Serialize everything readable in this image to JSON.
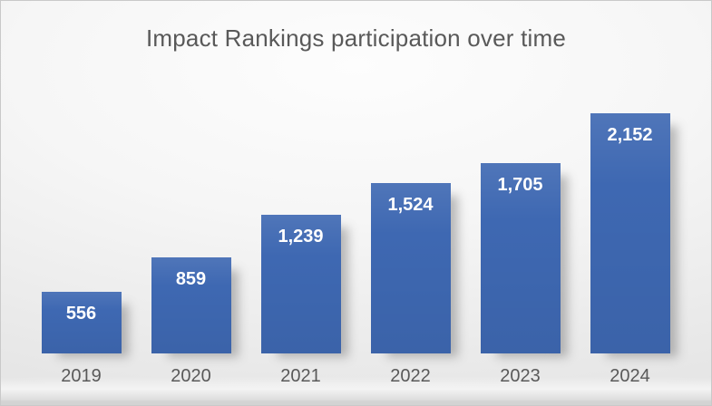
{
  "chart_data": {
    "type": "bar",
    "title": "Impact Rankings participation over time",
    "categories": [
      "2019",
      "2020",
      "2021",
      "2022",
      "2023",
      "2024"
    ],
    "values": [
      556,
      859,
      1239,
      1524,
      1705,
      2152
    ],
    "value_labels": [
      "556",
      "859",
      "1,239",
      "1,524",
      "1,705",
      "2,152"
    ],
    "xlabel": "",
    "ylabel": "",
    "ylim": [
      0,
      2300
    ],
    "grid": false,
    "legend": "none",
    "data_label_position": "inside-end",
    "bar_color": "#3e68b2",
    "label_color": "#ffffff",
    "axis_text_color": "#595959",
    "title_color": "#595959"
  }
}
